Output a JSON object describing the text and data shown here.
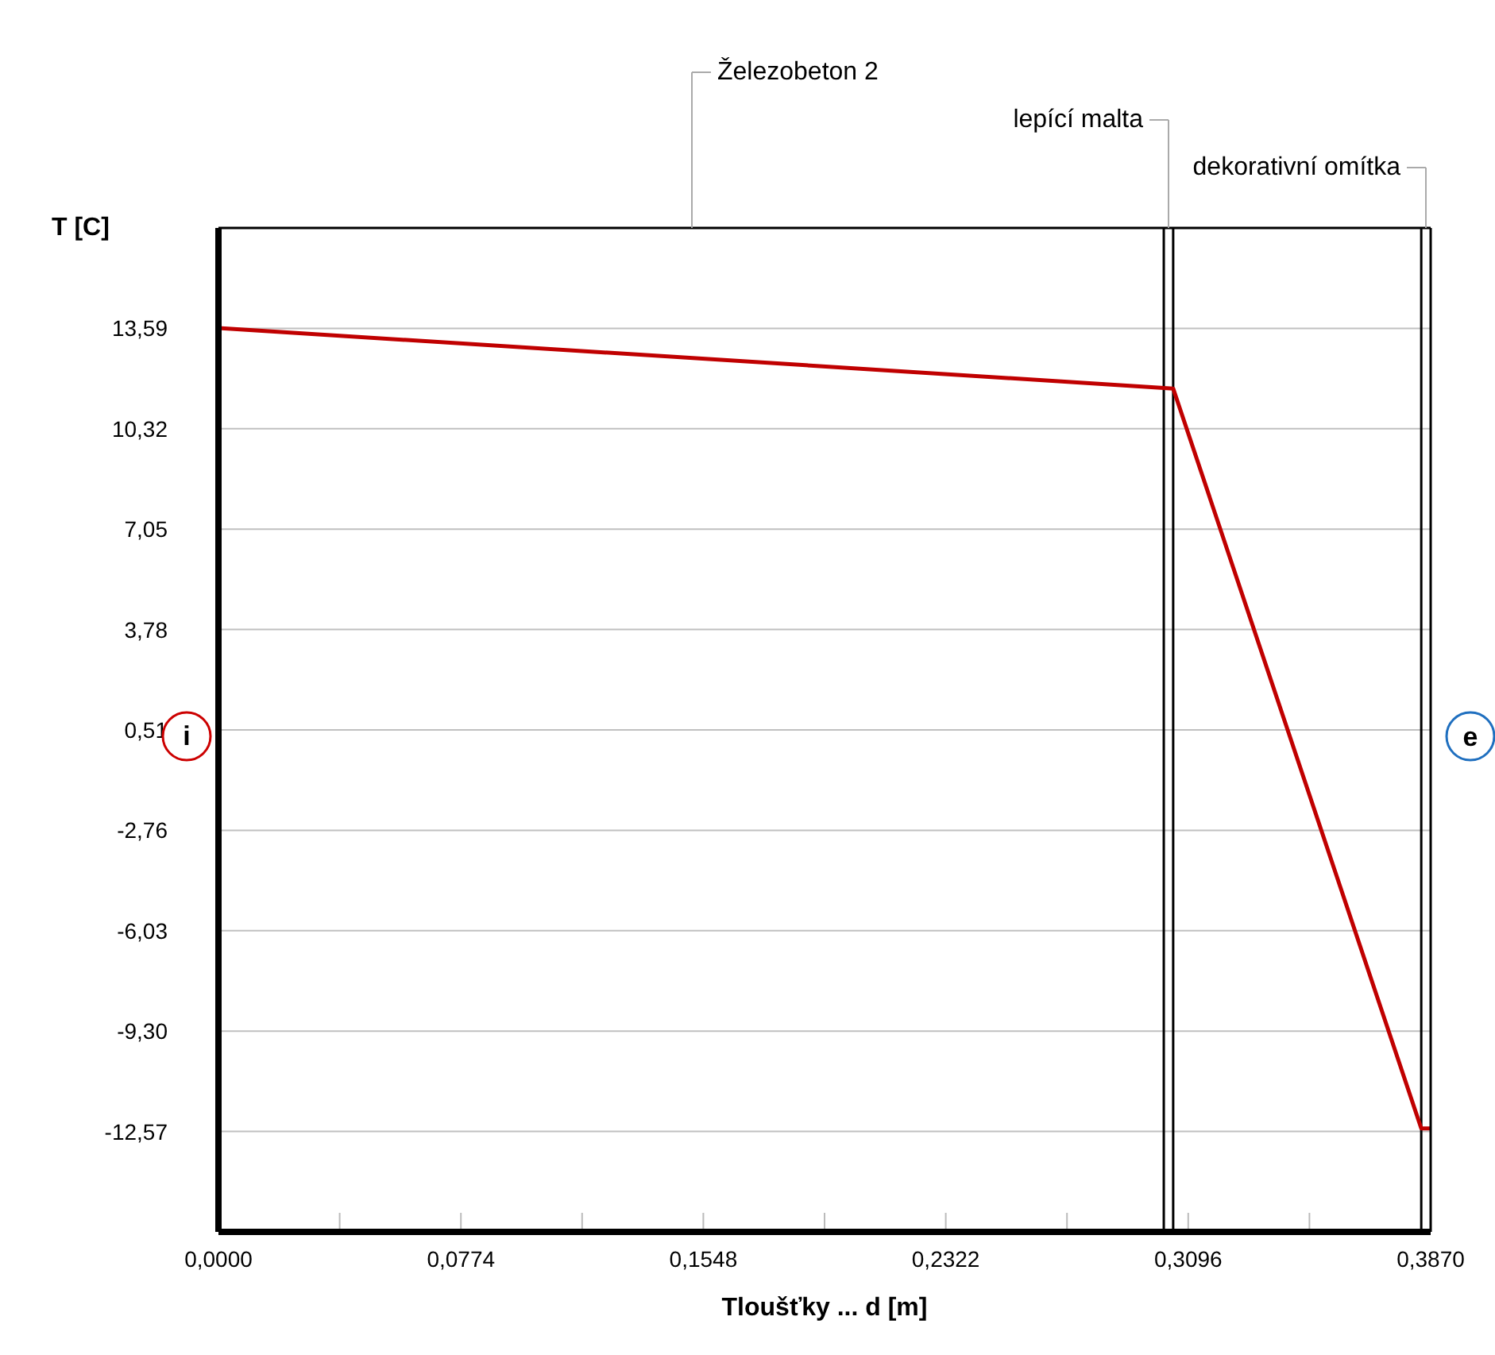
{
  "chart_data": {
    "type": "line",
    "xlabel": "Tloušťky ... d [m]",
    "ylabel": "T [C]",
    "x": [
      0,
      0.3048,
      0.384,
      0.387
    ],
    "series": [
      {
        "color": "#c00000",
        "values": [
          13.6,
          11.63,
          -12.47,
          -12.47
        ]
      }
    ],
    "xlim": [
      0,
      0.387
    ],
    "ylim": [
      -15.84,
      16.86
    ],
    "xticks": [
      {
        "value": 0,
        "label": "0,0000"
      },
      {
        "value": 0.0387,
        "label": null
      },
      {
        "value": 0.0774,
        "label": "0,0774"
      },
      {
        "value": 0.1161,
        "label": null
      },
      {
        "value": 0.1548,
        "label": "0,1548"
      },
      {
        "value": 0.1935,
        "label": null
      },
      {
        "value": 0.2322,
        "label": "0,2322"
      },
      {
        "value": 0.2709,
        "label": null
      },
      {
        "value": 0.3096,
        "label": "0,3096"
      },
      {
        "value": 0.3483,
        "label": null
      },
      {
        "value": 0.387,
        "label": "0,3870"
      }
    ],
    "yticks": [
      {
        "value": 13.59,
        "label": "13,59"
      },
      {
        "value": 10.32,
        "label": "10,32"
      },
      {
        "value": 7.05,
        "label": "7,05"
      },
      {
        "value": 3.78,
        "label": "3,78"
      },
      {
        "value": 0.51,
        "label": "0,51"
      },
      {
        "value": -2.76,
        "label": "-2,76"
      },
      {
        "value": -6.03,
        "label": "-6,03"
      },
      {
        "value": -9.3,
        "label": "-9,30"
      },
      {
        "value": -12.57,
        "label": "-12,57"
      }
    ],
    "ref_lines": [
      {
        "axis": "x",
        "value": 0.3018,
        "color": "#000000"
      },
      {
        "axis": "x",
        "value": 0.3048,
        "color": "#000000"
      },
      {
        "axis": "x",
        "value": 0.384,
        "color": "#000000"
      }
    ],
    "annotations": [
      "Železobeton 2",
      "lepící malta",
      "dekorativní omítka",
      "i",
      "e"
    ],
    "grid": "y",
    "marker": "none",
    "line_style": "solid"
  }
}
